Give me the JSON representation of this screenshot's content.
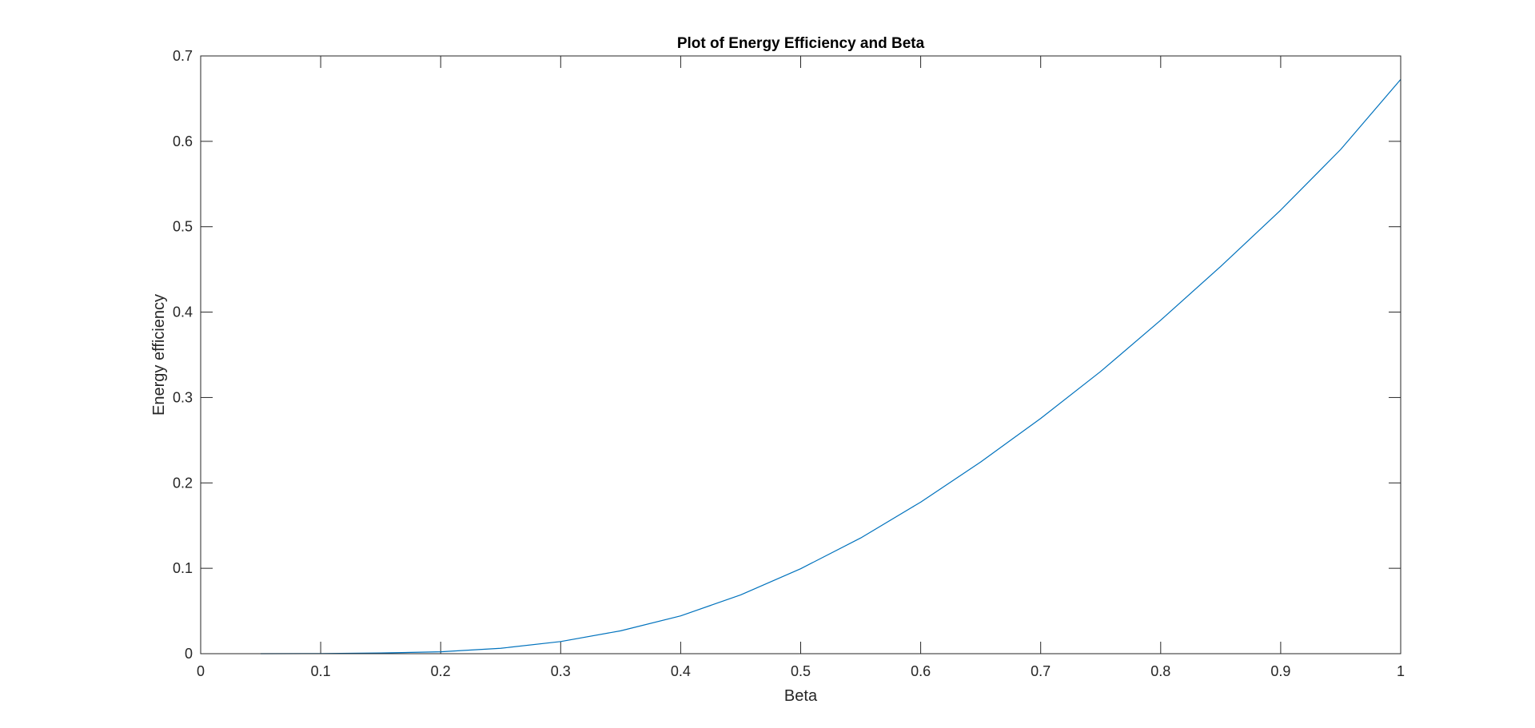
{
  "chart_data": {
    "type": "line",
    "title": "Plot of Energy Efficiency and Beta",
    "xlabel": "Beta",
    "ylabel": "Energy efficiency",
    "xlim": [
      0,
      1
    ],
    "ylim": [
      0,
      0.7
    ],
    "xticks": [
      "0",
      "0.1",
      "0.2",
      "0.3",
      "0.4",
      "0.5",
      "0.6",
      "0.7",
      "0.8",
      "0.9",
      "1"
    ],
    "yticks": [
      "0",
      "0.1",
      "0.2",
      "0.3",
      "0.4",
      "0.5",
      "0.6",
      "0.7"
    ],
    "grid": false,
    "series": [
      {
        "color": "#0072BD",
        "x": [
          0.05,
          0.1,
          0.15,
          0.2,
          0.25,
          0.3,
          0.35,
          0.4,
          0.45,
          0.5,
          0.55,
          0.6,
          0.65,
          0.7,
          0.75,
          0.8,
          0.85,
          0.9,
          0.95,
          1.0
        ],
        "y": [
          0.0,
          0.0002,
          0.0008,
          0.0022,
          0.0063,
          0.0142,
          0.0268,
          0.0443,
          0.0688,
          0.0995,
          0.1355,
          0.1775,
          0.2245,
          0.2755,
          0.3305,
          0.3905,
          0.4535,
          0.5195,
          0.5905,
          0.6725
        ]
      }
    ]
  }
}
